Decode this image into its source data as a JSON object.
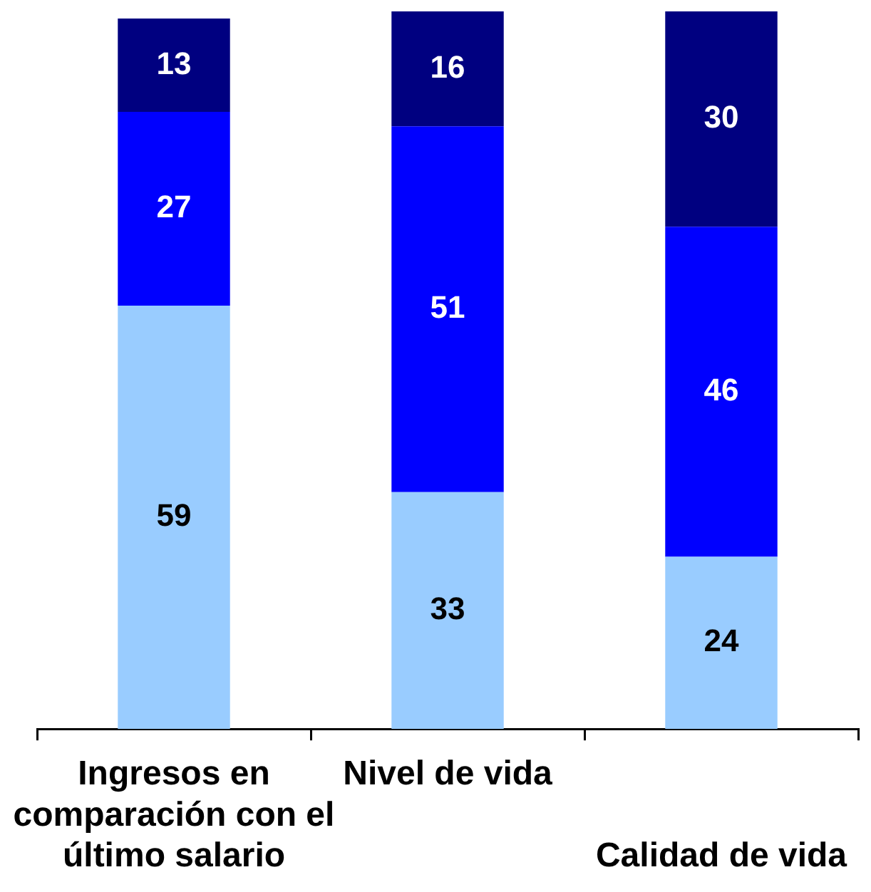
{
  "chart_data": {
    "type": "bar",
    "stacked": true,
    "data_labels": true,
    "tick_labels": "x",
    "categories": [
      "Ingresos en comparación con el último salario",
      "Nivel de vida",
      "Calidad de vida"
    ],
    "series": [
      {
        "color": "#99ccff",
        "values": [
          59,
          33,
          24
        ]
      },
      {
        "color": "#0000ff",
        "values": [
          27,
          51,
          46
        ]
      },
      {
        "color": "#000080",
        "values": [
          13,
          16,
          30
        ]
      }
    ]
  }
}
